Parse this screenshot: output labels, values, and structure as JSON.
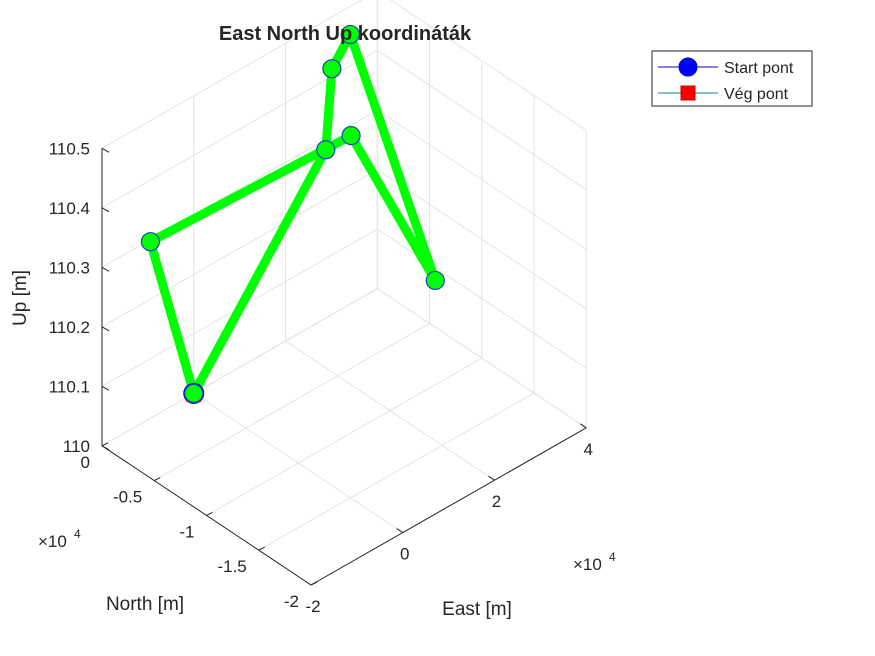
{
  "chart_data": {
    "type": "line3d",
    "title": "East North Up koordináták",
    "xlabel": "East [m]",
    "ylabel": "North [m]",
    "zlabel": "Up [m]",
    "x_exponent": "×10^4",
    "y_exponent": "×10^4",
    "xlim": [
      -20000,
      40000
    ],
    "ylim": [
      -20000,
      0
    ],
    "zlim": [
      110,
      110.5
    ],
    "xticks": [
      -20000,
      0,
      20000,
      40000
    ],
    "xtick_labels": [
      "-2",
      "0",
      "2",
      "4"
    ],
    "yticks": [
      -20000,
      -15000,
      -10000,
      -5000,
      0
    ],
    "ytick_labels": [
      "-2",
      "-1.5",
      "-1",
      "-0.5",
      "0"
    ],
    "zticks": [
      110,
      110.1,
      110.2,
      110.3,
      110.4,
      110.5
    ],
    "ztick_labels": [
      "110",
      "110.1",
      "110.2",
      "110.3",
      "110.4",
      "110.5"
    ],
    "grid": true,
    "legend_position": "top-right",
    "series": [
      {
        "name": "",
        "color": "#00ff00",
        "marker": "circle",
        "points": [
          {
            "x": 0,
            "y": 0,
            "z": 110
          },
          {
            "x": -14000,
            "y": -2000,
            "z": 110.34
          },
          {
            "x": 18800,
            "y": -6800,
            "z": 110.43
          },
          {
            "x": 10500,
            "y": -18500,
            "z": 110.36
          },
          {
            "x": 25000,
            "y": -4000,
            "z": 110.54
          },
          {
            "x": 21000,
            "y": -4000,
            "z": 110.5
          },
          {
            "x": 6000,
            "y": -10000,
            "z": 110.5
          },
          {
            "x": 0,
            "y": 0,
            "z": 110
          }
        ]
      }
    ],
    "legend": [
      {
        "label": "Start pont",
        "marker": "circle",
        "color": "#0000ff"
      },
      {
        "label": "Vég pont",
        "marker": "square",
        "color": "#ff0000"
      }
    ],
    "start_point": {
      "x": 0,
      "y": 0,
      "z": 110
    },
    "end_point": {
      "x": 0,
      "y": 0,
      "z": 110
    }
  }
}
